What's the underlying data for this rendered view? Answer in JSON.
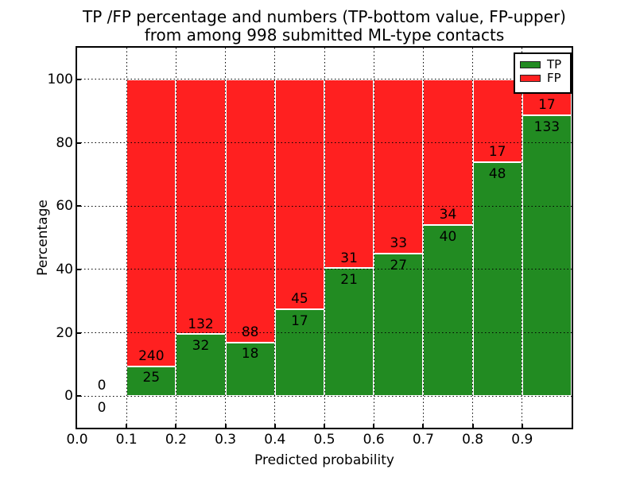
{
  "title": {
    "line1": "TP /FP percentage and numbers (TP-bottom value, FP-upper)",
    "line2": "from among 998 submitted ML-type contacts"
  },
  "chart_data": {
    "type": "bar",
    "stacked": true,
    "title": "TP /FP percentage and numbers (TP-bottom value, FP-upper) from among 998 submitted ML-type contacts",
    "xlabel": "Predicted probability",
    "ylabel": "Percentage",
    "xlim": [
      0.0,
      1.0
    ],
    "ylim": [
      -10,
      110
    ],
    "x_ticks": [
      "0.0",
      "0.1",
      "0.2",
      "0.3",
      "0.4",
      "0.5",
      "0.6",
      "0.7",
      "0.8",
      "0.9"
    ],
    "y_ticks": [
      0,
      20,
      40,
      60,
      80,
      100
    ],
    "grid": true,
    "total_contacts": 998,
    "bins": [
      {
        "range": [
          0.0,
          0.1
        ],
        "tp": 0,
        "fp": 0
      },
      {
        "range": [
          0.1,
          0.2
        ],
        "tp": 25,
        "fp": 240
      },
      {
        "range": [
          0.2,
          0.3
        ],
        "tp": 32,
        "fp": 132
      },
      {
        "range": [
          0.3,
          0.4
        ],
        "tp": 18,
        "fp": 88
      },
      {
        "range": [
          0.4,
          0.5
        ],
        "tp": 17,
        "fp": 45
      },
      {
        "range": [
          0.5,
          0.6
        ],
        "tp": 21,
        "fp": 31
      },
      {
        "range": [
          0.6,
          0.7
        ],
        "tp": 27,
        "fp": 33
      },
      {
        "range": [
          0.7,
          0.8
        ],
        "tp": 40,
        "fp": 34
      },
      {
        "range": [
          0.8,
          0.9
        ],
        "tp": 48,
        "fp": 17
      },
      {
        "range": [
          0.9,
          1.0
        ],
        "tp": 133,
        "fp": 17
      }
    ],
    "series_colors": {
      "tp": "#228B22",
      "fp": "#FF2020"
    },
    "legend": {
      "position": "upper right",
      "entries": [
        {
          "label": "TP",
          "color": "#228B22"
        },
        {
          "label": "FP",
          "color": "#FF2020"
        }
      ]
    }
  }
}
